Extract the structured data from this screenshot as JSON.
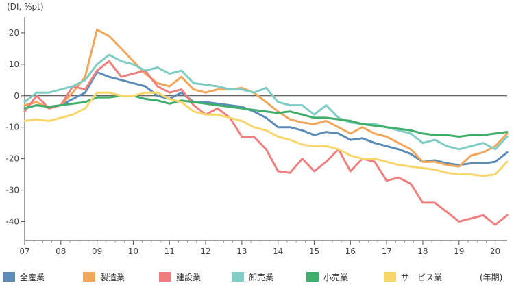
{
  "chart_data": {
    "type": "line",
    "unit_label": "(DI, %pt)",
    "year_unit_label": "(年期)",
    "x_tick_labels": [
      "07",
      "08",
      "09",
      "10",
      "11",
      "12",
      "13",
      "14",
      "15",
      "16",
      "17",
      "18",
      "19",
      "20"
    ],
    "x_tick_positions": [
      2007,
      2008,
      2009,
      2010,
      2011,
      2012,
      2013,
      2014,
      2015,
      2016,
      2017,
      2018,
      2019,
      2020
    ],
    "y_ticks": [
      20,
      10,
      0,
      -10,
      -20,
      -30,
      -40
    ],
    "xlim": [
      2007.0,
      2020.33
    ],
    "ylim": [
      -46,
      25
    ],
    "grid": false,
    "legend_position": "bottom",
    "series": [
      {
        "name": "全産業",
        "color": "#5b8db8",
        "values": [
          [
            2007.0,
            -4
          ],
          [
            2007.33,
            -3
          ],
          [
            2007.67,
            -3.5
          ],
          [
            2008.0,
            -3
          ],
          [
            2008.33,
            -1
          ],
          [
            2008.67,
            1
          ],
          [
            2009.0,
            7.5
          ],
          [
            2009.33,
            6
          ],
          [
            2009.67,
            5
          ],
          [
            2010.0,
            4
          ],
          [
            2010.33,
            3
          ],
          [
            2010.67,
            0
          ],
          [
            2011.0,
            -1
          ],
          [
            2011.33,
            1
          ],
          [
            2011.67,
            -2
          ],
          [
            2012.0,
            -2
          ],
          [
            2012.33,
            -2.5
          ],
          [
            2012.67,
            -3
          ],
          [
            2013.0,
            -3.5
          ],
          [
            2013.33,
            -5
          ],
          [
            2013.67,
            -7
          ],
          [
            2014.0,
            -10
          ],
          [
            2014.33,
            -10
          ],
          [
            2014.67,
            -11
          ],
          [
            2015.0,
            -12.5
          ],
          [
            2015.33,
            -11.5
          ],
          [
            2015.67,
            -12
          ],
          [
            2016.0,
            -14
          ],
          [
            2016.33,
            -13.5
          ],
          [
            2016.67,
            -15
          ],
          [
            2017.0,
            -16
          ],
          [
            2017.33,
            -17
          ],
          [
            2017.67,
            -18.5
          ],
          [
            2018.0,
            -21
          ],
          [
            2018.33,
            -20.5
          ],
          [
            2018.67,
            -21.5
          ],
          [
            2019.0,
            -22
          ],
          [
            2019.33,
            -21.5
          ],
          [
            2019.67,
            -21.5
          ],
          [
            2020.0,
            -21
          ],
          [
            2020.33,
            -18
          ]
        ]
      },
      {
        "name": "製造業",
        "color": "#f2a65a",
        "values": [
          [
            2007.0,
            -3
          ],
          [
            2007.33,
            -2
          ],
          [
            2007.67,
            -4
          ],
          [
            2008.0,
            -3
          ],
          [
            2008.33,
            1
          ],
          [
            2008.67,
            6
          ],
          [
            2009.0,
            21
          ],
          [
            2009.33,
            19
          ],
          [
            2009.67,
            15
          ],
          [
            2010.0,
            11
          ],
          [
            2010.33,
            7
          ],
          [
            2010.67,
            4
          ],
          [
            2011.0,
            3
          ],
          [
            2011.33,
            6
          ],
          [
            2011.67,
            2
          ],
          [
            2012.0,
            1
          ],
          [
            2012.33,
            2
          ],
          [
            2012.67,
            2
          ],
          [
            2013.0,
            2.5
          ],
          [
            2013.33,
            1
          ],
          [
            2013.67,
            -2
          ],
          [
            2014.0,
            -5
          ],
          [
            2014.33,
            -7.5
          ],
          [
            2014.67,
            -8.5
          ],
          [
            2015.0,
            -9
          ],
          [
            2015.33,
            -8
          ],
          [
            2015.67,
            -10
          ],
          [
            2016.0,
            -12
          ],
          [
            2016.33,
            -10
          ],
          [
            2016.67,
            -12
          ],
          [
            2017.0,
            -13
          ],
          [
            2017.33,
            -15
          ],
          [
            2017.67,
            -17
          ],
          [
            2018.0,
            -21
          ],
          [
            2018.33,
            -21
          ],
          [
            2018.67,
            -22
          ],
          [
            2019.0,
            -22.5
          ],
          [
            2019.33,
            -19
          ],
          [
            2019.67,
            -18
          ],
          [
            2020.0,
            -16
          ],
          [
            2020.33,
            -12
          ]
        ]
      },
      {
        "name": "建設業",
        "color": "#ef7f7f",
        "values": [
          [
            2007.0,
            -5
          ],
          [
            2007.33,
            0
          ],
          [
            2007.67,
            -4
          ],
          [
            2008.0,
            -3
          ],
          [
            2008.33,
            3
          ],
          [
            2008.67,
            2
          ],
          [
            2009.0,
            8
          ],
          [
            2009.33,
            11
          ],
          [
            2009.67,
            6
          ],
          [
            2010.0,
            7
          ],
          [
            2010.33,
            8
          ],
          [
            2010.67,
            3
          ],
          [
            2011.0,
            1
          ],
          [
            2011.33,
            2
          ],
          [
            2011.67,
            -3
          ],
          [
            2012.0,
            -6
          ],
          [
            2012.33,
            -4
          ],
          [
            2012.67,
            -7
          ],
          [
            2013.0,
            -13
          ],
          [
            2013.33,
            -13
          ],
          [
            2013.67,
            -17
          ],
          [
            2014.0,
            -24
          ],
          [
            2014.33,
            -24.5
          ],
          [
            2014.67,
            -20
          ],
          [
            2015.0,
            -24
          ],
          [
            2015.33,
            -21
          ],
          [
            2015.67,
            -17
          ],
          [
            2016.0,
            -24
          ],
          [
            2016.33,
            -20
          ],
          [
            2016.67,
            -21
          ],
          [
            2017.0,
            -27
          ],
          [
            2017.33,
            -26
          ],
          [
            2017.67,
            -28
          ],
          [
            2018.0,
            -34
          ],
          [
            2018.33,
            -34
          ],
          [
            2018.67,
            -37
          ],
          [
            2019.0,
            -40
          ],
          [
            2019.33,
            -39
          ],
          [
            2019.67,
            -38
          ],
          [
            2020.0,
            -41
          ],
          [
            2020.33,
            -38
          ]
        ]
      },
      {
        "name": "卸売業",
        "color": "#7fcdc4",
        "values": [
          [
            2007.0,
            -2
          ],
          [
            2007.33,
            1
          ],
          [
            2007.67,
            1
          ],
          [
            2008.0,
            2
          ],
          [
            2008.33,
            3
          ],
          [
            2008.67,
            5
          ],
          [
            2009.0,
            10
          ],
          [
            2009.33,
            13
          ],
          [
            2009.67,
            11
          ],
          [
            2010.0,
            10
          ],
          [
            2010.33,
            8
          ],
          [
            2010.67,
            9
          ],
          [
            2011.0,
            7
          ],
          [
            2011.33,
            8
          ],
          [
            2011.67,
            4
          ],
          [
            2012.0,
            3.5
          ],
          [
            2012.33,
            3
          ],
          [
            2012.67,
            2
          ],
          [
            2013.0,
            2
          ],
          [
            2013.33,
            1
          ],
          [
            2013.67,
            2.5
          ],
          [
            2014.0,
            -2
          ],
          [
            2014.33,
            -3
          ],
          [
            2014.67,
            -3
          ],
          [
            2015.0,
            -6
          ],
          [
            2015.33,
            -3
          ],
          [
            2015.67,
            -7
          ],
          [
            2016.0,
            -8.5
          ],
          [
            2016.33,
            -9
          ],
          [
            2016.67,
            -9
          ],
          [
            2017.0,
            -10
          ],
          [
            2017.33,
            -11
          ],
          [
            2017.67,
            -12
          ],
          [
            2018.0,
            -15
          ],
          [
            2018.33,
            -14
          ],
          [
            2018.67,
            -16
          ],
          [
            2019.0,
            -17
          ],
          [
            2019.33,
            -16
          ],
          [
            2019.67,
            -15
          ],
          [
            2020.0,
            -17
          ],
          [
            2020.33,
            -13
          ]
        ]
      },
      {
        "name": "小売業",
        "color": "#3fae6a",
        "values": [
          [
            2007.0,
            -4
          ],
          [
            2007.33,
            -3
          ],
          [
            2007.67,
            -3.5
          ],
          [
            2008.0,
            -3
          ],
          [
            2008.33,
            -2.5
          ],
          [
            2008.67,
            -2
          ],
          [
            2009.0,
            -0.5
          ],
          [
            2009.33,
            -0.5
          ],
          [
            2009.67,
            0
          ],
          [
            2010.0,
            0
          ],
          [
            2010.33,
            -1
          ],
          [
            2010.67,
            -1.5
          ],
          [
            2011.0,
            -2.5
          ],
          [
            2011.33,
            -1.5
          ],
          [
            2011.67,
            -2
          ],
          [
            2012.0,
            -2.5
          ],
          [
            2012.33,
            -3
          ],
          [
            2012.67,
            -3.5
          ],
          [
            2013.0,
            -4
          ],
          [
            2013.33,
            -4.5
          ],
          [
            2013.67,
            -5
          ],
          [
            2014.0,
            -5.5
          ],
          [
            2014.33,
            -5
          ],
          [
            2014.67,
            -6
          ],
          [
            2015.0,
            -7
          ],
          [
            2015.33,
            -7
          ],
          [
            2015.67,
            -7.5
          ],
          [
            2016.0,
            -8
          ],
          [
            2016.33,
            -9
          ],
          [
            2016.67,
            -9.5
          ],
          [
            2017.0,
            -10
          ],
          [
            2017.33,
            -10.5
          ],
          [
            2017.67,
            -11
          ],
          [
            2018.0,
            -12
          ],
          [
            2018.33,
            -12.5
          ],
          [
            2018.67,
            -12.5
          ],
          [
            2019.0,
            -13
          ],
          [
            2019.33,
            -12.5
          ],
          [
            2019.67,
            -12.5
          ],
          [
            2020.0,
            -12
          ],
          [
            2020.33,
            -11.5
          ]
        ]
      },
      {
        "name": "サービス業",
        "color": "#f7d66b",
        "values": [
          [
            2007.0,
            -8
          ],
          [
            2007.33,
            -7.5
          ],
          [
            2007.67,
            -8
          ],
          [
            2008.0,
            -7
          ],
          [
            2008.33,
            -6
          ],
          [
            2008.67,
            -4
          ],
          [
            2009.0,
            1
          ],
          [
            2009.33,
            1
          ],
          [
            2009.67,
            0
          ],
          [
            2010.0,
            0
          ],
          [
            2010.33,
            1
          ],
          [
            2010.67,
            1
          ],
          [
            2011.0,
            -1
          ],
          [
            2011.33,
            -2
          ],
          [
            2011.67,
            -5
          ],
          [
            2012.0,
            -6
          ],
          [
            2012.33,
            -6
          ],
          [
            2012.67,
            -7
          ],
          [
            2013.0,
            -8
          ],
          [
            2013.33,
            -10
          ],
          [
            2013.67,
            -11
          ],
          [
            2014.0,
            -13
          ],
          [
            2014.33,
            -14
          ],
          [
            2014.67,
            -15.5
          ],
          [
            2015.0,
            -16
          ],
          [
            2015.33,
            -16
          ],
          [
            2015.67,
            -17
          ],
          [
            2016.0,
            -19
          ],
          [
            2016.33,
            -20
          ],
          [
            2016.67,
            -20
          ],
          [
            2017.0,
            -21
          ],
          [
            2017.33,
            -22
          ],
          [
            2017.67,
            -22.5
          ],
          [
            2018.0,
            -23
          ],
          [
            2018.33,
            -23.5
          ],
          [
            2018.67,
            -24.5
          ],
          [
            2019.0,
            -25
          ],
          [
            2019.33,
            -25
          ],
          [
            2019.67,
            -25.5
          ],
          [
            2020.0,
            -25
          ],
          [
            2020.33,
            -21
          ]
        ]
      }
    ]
  }
}
